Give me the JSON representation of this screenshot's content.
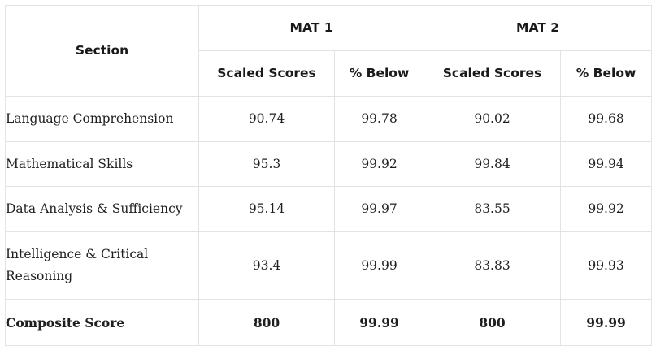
{
  "table": {
    "header": {
      "section_label": "Section",
      "group1": "MAT 1",
      "group2": "MAT 2",
      "sub": [
        "Scaled Scores",
        "% Below",
        "Scaled Scores",
        "% Below"
      ]
    },
    "rows": [
      {
        "section": "Language Comprehension",
        "values": [
          "90.74",
          "99.78",
          "90.02",
          "99.68"
        ]
      },
      {
        "section": "Mathematical Skills",
        "values": [
          "95.3",
          "99.92",
          "99.84",
          "99.94"
        ]
      },
      {
        "section": "Data Analysis & Sufficiency",
        "values": [
          "95.14",
          "99.97",
          "83.55",
          "99.92"
        ]
      },
      {
        "section": "Intelligence & Critical Reasoning",
        "values": [
          "93.4",
          "99.99",
          "83.83",
          "99.93"
        ]
      }
    ],
    "composite": {
      "section": "Composite Score",
      "values": [
        "800",
        "99.99",
        "800",
        "99.99"
      ]
    }
  },
  "colors": {
    "border": "#e3e3e3",
    "text": "#1f1f1f",
    "background": "#ffffff"
  }
}
